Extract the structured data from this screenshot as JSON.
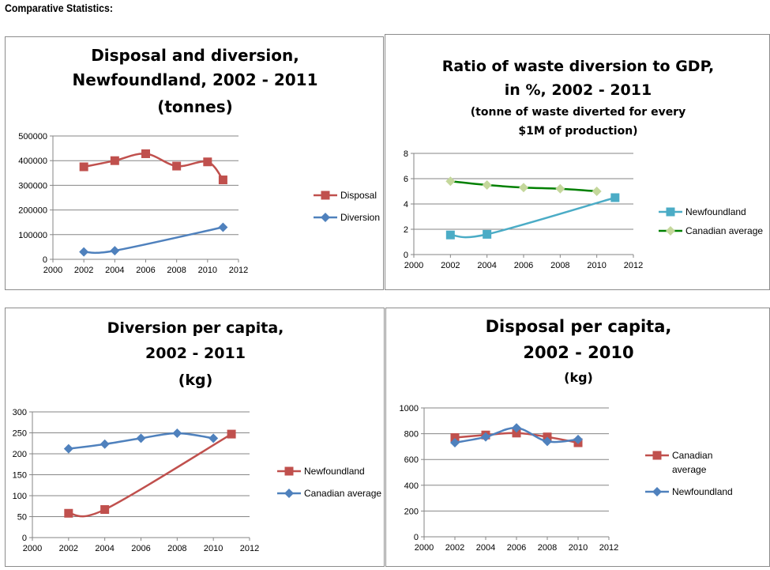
{
  "page": {
    "title": "Comparative Statistics:"
  },
  "chart_data": [
    {
      "type": "line",
      "title_lines": [
        "Disposal and diversion,",
        "Newfoundland, 2002 - 2011",
        "(tonnes)"
      ],
      "xlim": [
        2000,
        2012
      ],
      "ylim": [
        0,
        500000
      ],
      "xticks": [
        "2000",
        "2002",
        "2004",
        "2006",
        "2008",
        "2010",
        "2012"
      ],
      "yticks": [
        "0",
        "100000",
        "200000",
        "300000",
        "400000",
        "500000"
      ],
      "grid": true,
      "legend_position": "right",
      "series": [
        {
          "name": "Disposal",
          "color": "#c0504d",
          "marker": "square",
          "x": [
            2002,
            2004,
            2006,
            2008,
            2010,
            2011
          ],
          "y": [
            375000,
            400000,
            428000,
            378000,
            395000,
            322000
          ]
        },
        {
          "name": "Diversion",
          "color": "#4f81bd",
          "marker": "diamond",
          "x": [
            2002,
            2004,
            2011
          ],
          "y": [
            30000,
            35000,
            130000
          ]
        }
      ]
    },
    {
      "type": "line",
      "title_lines": [
        "Ratio of waste diversion to GDP,",
        "in %, 2002 - 2011"
      ],
      "subtitle_lines": [
        "(tonne of waste diverted for every",
        "$1M of production)"
      ],
      "xlim": [
        2000,
        2012
      ],
      "ylim": [
        0,
        8
      ],
      "xticks": [
        "2000",
        "2002",
        "2004",
        "2006",
        "2008",
        "2010",
        "2012"
      ],
      "yticks": [
        "0",
        "2",
        "4",
        "6",
        "8"
      ],
      "grid": true,
      "legend_position": "right",
      "series": [
        {
          "name": "Newfoundland",
          "color": "#4bacc6",
          "marker": "square",
          "x": [
            2002,
            2004,
            2011
          ],
          "y": [
            1.55,
            1.6,
            4.5
          ]
        },
        {
          "name": "Canadian average",
          "color": "#008000",
          "marker": "diamond",
          "marker_color": "#c4d79b",
          "x": [
            2002,
            2004,
            2006,
            2008,
            2010
          ],
          "y": [
            5.8,
            5.5,
            5.3,
            5.2,
            5.0
          ]
        }
      ]
    },
    {
      "type": "line",
      "title_lines": [
        "Diversion per capita,",
        "2002 - 2011",
        "(kg)"
      ],
      "xlim": [
        2000,
        2012
      ],
      "ylim": [
        0,
        300
      ],
      "xticks": [
        "2000",
        "2002",
        "2004",
        "2006",
        "2008",
        "2010",
        "2012"
      ],
      "yticks": [
        "0",
        "50",
        "100",
        "150",
        "200",
        "250",
        "300"
      ],
      "grid": true,
      "legend_position": "right",
      "series": [
        {
          "name": "Newfoundland",
          "color": "#c0504d",
          "marker": "square",
          "x": [
            2002,
            2004,
            2011
          ],
          "y": [
            58,
            67,
            247
          ]
        },
        {
          "name": "Canadian average",
          "color": "#4f81bd",
          "marker": "diamond",
          "x": [
            2002,
            2004,
            2006,
            2008,
            2010
          ],
          "y": [
            212,
            223,
            237,
            249,
            237
          ]
        }
      ]
    },
    {
      "type": "line",
      "title_lines": [
        "Disposal per capita,",
        "2002 - 2010"
      ],
      "subtitle_lines": [
        "(kg)"
      ],
      "xlim": [
        2000,
        2012
      ],
      "ylim": [
        0,
        1000
      ],
      "xticks": [
        "2000",
        "2002",
        "2004",
        "2006",
        "2008",
        "2010",
        "2012"
      ],
      "yticks": [
        "0",
        "200",
        "400",
        "600",
        "800",
        "1000"
      ],
      "grid": true,
      "legend_position": "right",
      "series": [
        {
          "name": "Canadian average",
          "name_lines": [
            "Canadian",
            "average"
          ],
          "color": "#c0504d",
          "marker": "square",
          "x": [
            2002,
            2004,
            2006,
            2008,
            2010
          ],
          "y": [
            770,
            790,
            805,
            775,
            730
          ]
        },
        {
          "name": "Newfoundland",
          "color": "#4f81bd",
          "marker": "diamond",
          "x": [
            2002,
            2004,
            2006,
            2008,
            2010
          ],
          "y": [
            730,
            775,
            845,
            740,
            755
          ]
        }
      ]
    }
  ]
}
